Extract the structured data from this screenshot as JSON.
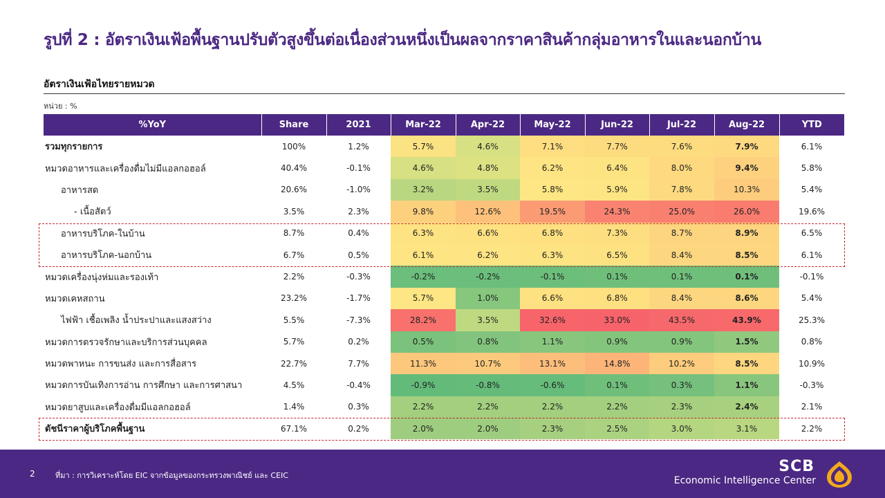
{
  "slide": {
    "title": "รูปที่ 2 : อัตราเงินเฟ้อพื้นฐานปรับตัวสูงขึ้นต่อเนื่องส่วนหนึ่งเป็นผลจากราคาสินค้ากลุ่มอาหารในและนอกบ้าน",
    "table_heading": "อัตราเงินเฟ้อไทยรายหมวด",
    "unit": "หน่วย : %"
  },
  "table": {
    "headers": [
      "%YoY",
      "Share",
      "2021",
      "Mar-22",
      "Apr-22",
      "May-22",
      "Jun-22",
      "Jul-22",
      "Aug-22",
      "YTD"
    ],
    "rows": [
      {
        "label": "รวมทุกรายการ",
        "indent": 0,
        "bold": true,
        "share": "100%",
        "y2021": "1.2%",
        "values": [
          "5.7%",
          "4.6%",
          "7.1%",
          "7.7%",
          "7.6%",
          "7.9%"
        ],
        "colors": [
          "#fbe283",
          "#d7e082",
          "#fede81",
          "#fddb7f",
          "#fddc80",
          "#fdd97f"
        ],
        "aug_bold": true,
        "ytd": "6.1%"
      },
      {
        "label": "หมวดอาหารและเครื่องดื่มไม่มีแอลกอฮอล์",
        "indent": 0,
        "bold": false,
        "share": "40.4%",
        "y2021": "-0.1%",
        "values": [
          "4.6%",
          "4.8%",
          "6.2%",
          "6.4%",
          "8.0%",
          "9.4%"
        ],
        "colors": [
          "#d7e082",
          "#dce182",
          "#fee482",
          "#fee382",
          "#fed980",
          "#fdd17e"
        ],
        "aug_bold": true,
        "ytd": "5.8%"
      },
      {
        "label": "อาหารสด",
        "indent": 1,
        "bold": false,
        "share": "20.6%",
        "y2021": "-1.0%",
        "values": [
          "3.2%",
          "3.5%",
          "5.8%",
          "5.9%",
          "7.8%",
          "10.3%"
        ],
        "colors": [
          "#b9d780",
          "#bfd980",
          "#fde683",
          "#fde583",
          "#fdda80",
          "#fdcc7d"
        ],
        "aug_bold": false,
        "ytd": "5.4%"
      },
      {
        "label": "- เนื้อสัตว์",
        "indent": 2,
        "bold": false,
        "share": "3.5%",
        "y2021": "2.3%",
        "values": [
          "9.8%",
          "12.6%",
          "19.5%",
          "24.3%",
          "25.0%",
          "26.0%"
        ],
        "colors": [
          "#fdd07e",
          "#fdc17b",
          "#fb9b74",
          "#f98370",
          "#f9806f",
          "#f97c6e"
        ],
        "aug_bold": false,
        "ytd": "19.6%"
      },
      {
        "label": "อาหารบริโภค-ในบ้าน",
        "indent": 1,
        "bold": false,
        "share": "8.7%",
        "y2021": "0.4%",
        "values": [
          "6.3%",
          "6.6%",
          "6.8%",
          "7.3%",
          "8.7%",
          "8.9%"
        ],
        "colors": [
          "#fee382",
          "#fee181",
          "#fee081",
          "#fdde80",
          "#fdd57f",
          "#fdd47f"
        ],
        "aug_bold": true,
        "ytd": "6.5%"
      },
      {
        "label": "อาหารบริโภค-นอกบ้าน",
        "indent": 1,
        "bold": false,
        "share": "6.7%",
        "y2021": "0.5%",
        "values": [
          "6.1%",
          "6.2%",
          "6.3%",
          "6.5%",
          "8.4%",
          "8.5%"
        ],
        "colors": [
          "#fee482",
          "#fee482",
          "#fee382",
          "#fee282",
          "#fdd780",
          "#fdd67f"
        ],
        "aug_bold": true,
        "ytd": "6.1%"
      },
      {
        "label": "หมวดเครื่องนุ่งห่มและรองเท้า",
        "indent": 0,
        "bold": false,
        "share": "2.2%",
        "y2021": "-0.3%",
        "values": [
          "-0.2%",
          "-0.2%",
          "-0.1%",
          "0.1%",
          "0.1%",
          "0.1%"
        ],
        "colors": [
          "#6bbe7b",
          "#6bbe7b",
          "#6cbe7b",
          "#6fbf7b",
          "#6fbf7b",
          "#6fbf7b"
        ],
        "aug_bold": true,
        "ytd": "-0.1%"
      },
      {
        "label": "หมวดเคหสถาน",
        "indent": 0,
        "bold": false,
        "share": "23.2%",
        "y2021": "-1.7%",
        "values": [
          "5.7%",
          "1.0%",
          "6.6%",
          "6.8%",
          "8.4%",
          "8.6%"
        ],
        "colors": [
          "#fde683",
          "#86c67d",
          "#fee181",
          "#fee081",
          "#fdd780",
          "#fdd67f"
        ],
        "aug_bold": true,
        "ytd": "5.4%"
      },
      {
        "label": "ไฟฟ้า เชื้อเพลิง น้ำประปาและแสงสว่าง",
        "indent": 1,
        "bold": false,
        "share": "5.5%",
        "y2021": "-7.3%",
        "values": [
          "28.2%",
          "3.5%",
          "32.6%",
          "33.0%",
          "43.5%",
          "43.9%"
        ],
        "colors": [
          "#f8716c",
          "#bfd980",
          "#f7646a",
          "#f7636a",
          "#f5686b",
          "#f8696b"
        ],
        "aug_bold": true,
        "ytd": "25.3%"
      },
      {
        "label": "หมวดการตรวจรักษาและบริการส่วนบุคคล",
        "indent": 0,
        "bold": false,
        "share": "5.7%",
        "y2021": "0.2%",
        "values": [
          "0.5%",
          "0.8%",
          "1.1%",
          "0.9%",
          "0.9%",
          "1.5%"
        ],
        "colors": [
          "#7bc27c",
          "#82c47d",
          "#88c67d",
          "#84c57d",
          "#84c57d",
          "#90c97e"
        ],
        "aug_bold": true,
        "ytd": "0.8%"
      },
      {
        "label": "หมวดพาหนะ การขนส่ง และการสื่อสาร",
        "indent": 0,
        "bold": false,
        "share": "22.7%",
        "y2021": "7.7%",
        "values": [
          "11.3%",
          "10.7%",
          "13.1%",
          "14.8%",
          "10.2%",
          "8.5%"
        ],
        "colors": [
          "#fdc77c",
          "#fdca7d",
          "#fdbe7b",
          "#fcb479",
          "#fdcc7d",
          "#fdd67f"
        ],
        "aug_bold": true,
        "ytd": "10.9%"
      },
      {
        "label": "หมวดการบันเทิงการอ่าน การศึกษา และการศาสนา",
        "indent": 0,
        "bold": false,
        "share": "4.5%",
        "y2021": "-0.4%",
        "values": [
          "-0.9%",
          "-0.8%",
          "-0.6%",
          "0.1%",
          "0.3%",
          "1.1%"
        ],
        "colors": [
          "#63bb7a",
          "#64bb7a",
          "#66bc7a",
          "#6fbf7b",
          "#74c07c",
          "#88c67d"
        ],
        "aug_bold": true,
        "ytd": "-0.3%"
      },
      {
        "label": "หมวดยาสูบและเครื่องดื่มมีแอลกอฮอล์",
        "indent": 0,
        "bold": false,
        "share": "1.4%",
        "y2021": "0.3%",
        "values": [
          "2.2%",
          "2.2%",
          "2.2%",
          "2.2%",
          "2.3%",
          "2.4%"
        ],
        "colors": [
          "#a3cf7f",
          "#a3cf7f",
          "#a3cf7f",
          "#a3cf7f",
          "#a6d07f",
          "#a8d17f"
        ],
        "aug_bold": true,
        "ytd": "2.1%"
      },
      {
        "label": "ดัชนีราคาผู้บริโภคพื้นฐาน",
        "indent": 0,
        "bold": true,
        "share": "67.1%",
        "y2021": "0.2%",
        "values": [
          "2.0%",
          "2.0%",
          "2.3%",
          "2.5%",
          "3.0%",
          "3.1%"
        ],
        "colors": [
          "#9ecd7f",
          "#9ecd7f",
          "#a6d07f",
          "#abd280",
          "#b5d680",
          "#b8d780"
        ],
        "aug_bold": false,
        "ytd": "2.2%"
      }
    ]
  },
  "footer": {
    "page_number": "2",
    "source": "ที่มา : การวิเคราะห์โดย EIC จากข้อมูลของกระทรวงพาณิชย์ และ CEIC",
    "brand_name": "SCB",
    "brand_tagline": "Economic Intelligence Center"
  }
}
